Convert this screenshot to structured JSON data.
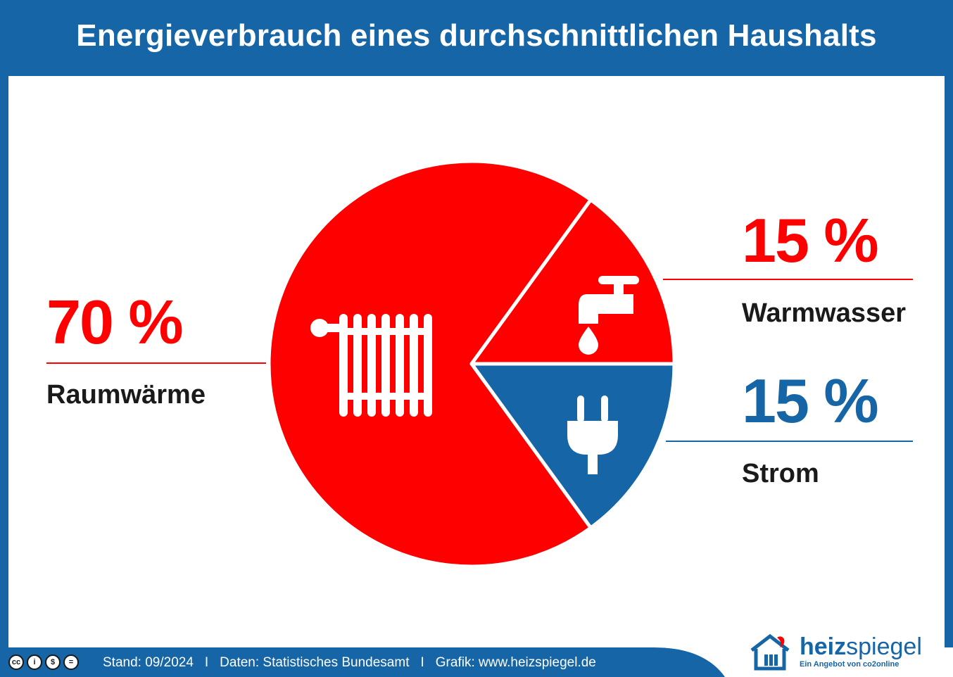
{
  "title": "Energieverbrauch eines durchschnittlichen Haushalts",
  "colors": {
    "red": "#ff0000",
    "blue": "#1565a7",
    "text": "#1a1a1a",
    "background": "#ffffff"
  },
  "chart_data": {
    "type": "pie",
    "title": "Energieverbrauch eines durchschnittlichen Haushalts",
    "categories": [
      "Raumwärme",
      "Warmwasser",
      "Strom"
    ],
    "values": [
      70,
      15,
      15
    ],
    "unit": "%",
    "colors": [
      "#ff0000",
      "#ff0000",
      "#1565a7"
    ],
    "icons": [
      "radiator-icon",
      "water-tap-icon",
      "power-plug-icon"
    ]
  },
  "labels": {
    "raumwaerme": {
      "percent": "70 %",
      "name": "Raumwärme"
    },
    "warmwasser": {
      "percent": "15 %",
      "name": "Warmwasser"
    },
    "strom": {
      "percent": "15 %",
      "name": "Strom"
    }
  },
  "footer": {
    "license_icons": [
      "cc-icon",
      "by-icon",
      "nc-icon",
      "nd-icon"
    ],
    "stand": "Stand: 09/2024",
    "separator": "I",
    "daten": "Daten: Statistisches Bundesamt",
    "grafik": "Grafik: www.heizspiegel.de"
  },
  "logo": {
    "word_bold": "heiz",
    "word_light": "spiegel",
    "tagline": "Ein Angebot von co2online"
  }
}
